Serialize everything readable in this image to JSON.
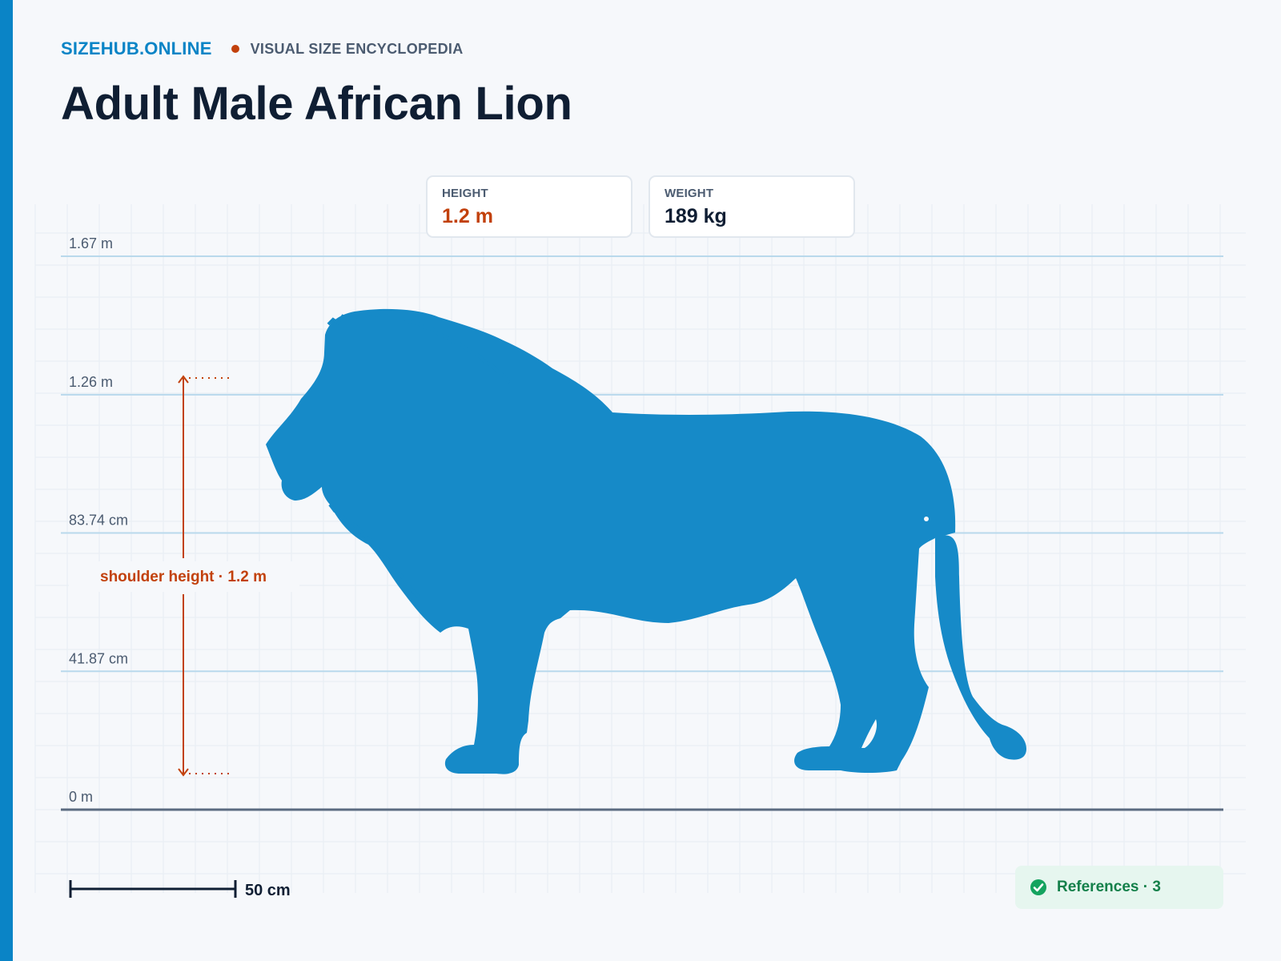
{
  "brand": {
    "site": "SIZEHUB.ONLINE",
    "tagline": "VISUAL SIZE ENCYCLOPEDIA"
  },
  "title": "Adult Male African Lion",
  "stats": {
    "height_label": "HEIGHT",
    "height_value": "1.2 m",
    "weight_label": "WEIGHT",
    "weight_value": "189 kg"
  },
  "axis": {
    "ticks": [
      {
        "label": "1.67 m",
        "value_m": 1.675
      },
      {
        "label": "1.26 m",
        "value_m": 1.256
      },
      {
        "label": "83.74 cm",
        "value_m": 0.8374
      },
      {
        "label": "41.87 cm",
        "value_m": 0.4187
      },
      {
        "label": "0 m",
        "value_m": 0
      }
    ]
  },
  "dimension": {
    "label": "shoulder height · 1.2 m",
    "value_m": 1.2
  },
  "scale_bar": {
    "label": "50 cm",
    "value_m": 0.5
  },
  "references": {
    "label": "References · 3"
  },
  "colors": {
    "accent": "#0a84c6",
    "silhouette": "#168ac8",
    "highlight": "#c2410c",
    "title": "#0f1e33",
    "references_bg": "#e6f6ef",
    "references_text": "#14804a"
  },
  "icons": {
    "references": "check-circle-icon",
    "subject": "lion-silhouette"
  }
}
